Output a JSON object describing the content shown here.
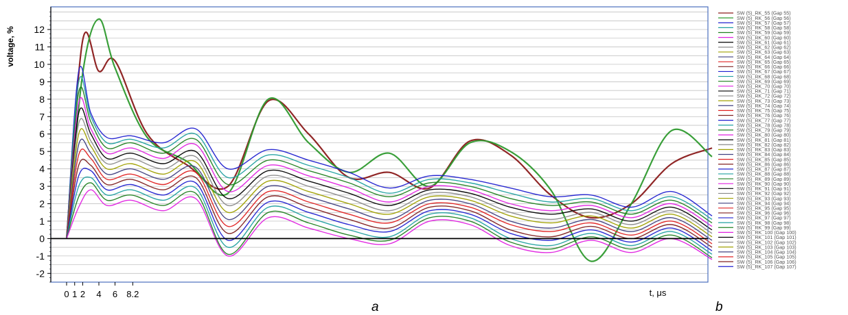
{
  "captions": {
    "a": "a",
    "b": "b"
  },
  "chart_data": {
    "type": "line",
    "title": "",
    "xlabel": "t, μs",
    "ylabel": "voltage, %",
    "xlim": [
      0,
      80
    ],
    "ylim": [
      -2.5,
      13.3
    ],
    "x_tick_labels": [
      {
        "x": 0,
        "label": "0"
      },
      {
        "x": 1,
        "label": "1"
      },
      {
        "x": 2,
        "label": "2"
      },
      {
        "x": 4,
        "label": "4"
      },
      {
        "x": 6,
        "label": "6"
      },
      {
        "x": 8.2,
        "label": "8.2"
      }
    ],
    "y_ticks": [
      -2,
      -1,
      0,
      1,
      2,
      3,
      4,
      5,
      6,
      7,
      8,
      9,
      10,
      11,
      12
    ],
    "grid": true,
    "legend_position": "right",
    "series_colors": [
      "#e02020",
      "#802020",
      "#2020d0",
      "#20a0a0",
      "#208020",
      "#e020e0",
      "#000000",
      "#8a8a8a",
      "#a0a000",
      "#404080"
    ],
    "series": [
      {
        "name": "SW (5)_RK_55 (Gap 55)",
        "x": [
          0,
          2,
          4,
          6,
          10,
          15,
          20,
          25,
          30,
          35,
          40,
          45,
          50,
          55,
          60,
          65,
          70,
          75,
          80
        ],
        "y": [
          0,
          11.4,
          9.6,
          10.2,
          6.0,
          4.2,
          3.0,
          7.9,
          6.0,
          3.5,
          3.8,
          2.9,
          5.6,
          4.8,
          2.5,
          1.2,
          2.0,
          4.3,
          5.2
        ]
      },
      {
        "name": "SW (5)_RK_56 (Gap 56)",
        "x": [
          0,
          2,
          4,
          6,
          10,
          15,
          20,
          25,
          30,
          35,
          40,
          45,
          50,
          55,
          60,
          65,
          70,
          75,
          80
        ],
        "y": [
          0,
          9.5,
          12.6,
          9.8,
          5.8,
          4.4,
          2.6,
          8.0,
          5.5,
          3.8,
          4.9,
          3.0,
          5.5,
          5.0,
          2.8,
          -1.3,
          2.0,
          6.2,
          4.7
        ]
      },
      {
        "name": "SW (5)_RK_57 (Gap 57)",
        "x": [
          0,
          1.5,
          3,
          5,
          8,
          12,
          16,
          20,
          25,
          30,
          35,
          40,
          45,
          50,
          55,
          60,
          65,
          70,
          75,
          80
        ],
        "y": [
          0,
          9.6,
          7.2,
          5.8,
          5.9,
          5.5,
          6.3,
          4.0,
          5.1,
          4.5,
          3.8,
          2.9,
          3.6,
          3.4,
          2.9,
          2.4,
          2.5,
          1.8,
          2.7,
          1.3
        ]
      },
      {
        "name": "SW (5)_RK_58 (Gap 58)",
        "x": [
          0,
          1.5,
          3,
          5,
          8,
          12,
          16,
          20,
          25,
          30,
          35,
          40,
          45,
          50,
          55,
          60,
          65,
          70,
          75,
          80
        ],
        "y": [
          0,
          9.0,
          7.0,
          5.5,
          5.7,
          5.2,
          6.0,
          3.5,
          4.8,
          4.2,
          3.5,
          2.6,
          3.4,
          3.2,
          2.6,
          2.1,
          2.3,
          1.6,
          2.4,
          1.1
        ]
      },
      {
        "name": "SW (5)_RK_59 (Gap 59)",
        "x": [
          0,
          1.5,
          3,
          5,
          8,
          12,
          16,
          20,
          25,
          30,
          35,
          40,
          45,
          50,
          55,
          60,
          65,
          70,
          75,
          80
        ],
        "y": [
          0,
          8.4,
          6.7,
          5.2,
          5.5,
          4.9,
          5.7,
          3.1,
          4.5,
          3.9,
          3.2,
          2.4,
          3.2,
          3.0,
          2.3,
          1.9,
          2.1,
          1.4,
          2.2,
          0.9
        ]
      },
      {
        "name": "SW (5)_RK_60 (Gap 60)",
        "x": [
          0,
          1.5,
          3,
          5,
          8,
          12,
          16,
          20,
          25,
          30,
          35,
          40,
          45,
          50,
          55,
          60,
          65,
          70,
          75,
          80
        ],
        "y": [
          0,
          7.8,
          6.3,
          4.9,
          5.2,
          4.6,
          5.4,
          2.7,
          4.2,
          3.6,
          2.9,
          2.1,
          3.0,
          2.8,
          2.0,
          1.6,
          1.9,
          1.2,
          2.0,
          0.7
        ]
      },
      {
        "name": "SW (5)_RK_61 (Gap 61)",
        "x": [
          0,
          1.5,
          3,
          5,
          8,
          12,
          16,
          20,
          25,
          30,
          35,
          40,
          45,
          50,
          55,
          60,
          65,
          70,
          75,
          80
        ],
        "y": [
          0,
          7.2,
          6.0,
          4.6,
          4.9,
          4.3,
          5.0,
          2.3,
          3.9,
          3.3,
          2.6,
          1.9,
          2.8,
          2.6,
          1.8,
          1.4,
          1.7,
          1.0,
          1.8,
          0.5
        ]
      },
      {
        "name": "SW (5)_RK_62 (Gap 62)",
        "x": [
          0,
          1.5,
          3,
          5,
          8,
          12,
          16,
          20,
          25,
          30,
          35,
          40,
          45,
          50,
          55,
          60,
          65,
          70,
          75,
          80
        ],
        "y": [
          0,
          6.6,
          5.6,
          4.3,
          4.6,
          4.0,
          4.7,
          1.9,
          3.6,
          3.0,
          2.3,
          1.6,
          2.6,
          2.4,
          1.5,
          1.1,
          1.5,
          0.8,
          1.6,
          0.3
        ]
      },
      {
        "name": "SW (5)_RK_63 (Gap 63)",
        "x": [
          0,
          1.5,
          3,
          5,
          8,
          12,
          16,
          20,
          25,
          30,
          35,
          40,
          45,
          50,
          55,
          60,
          65,
          70,
          75,
          80
        ],
        "y": [
          0,
          6.0,
          5.3,
          4.0,
          4.3,
          3.7,
          4.4,
          1.5,
          3.3,
          2.7,
          2.0,
          1.4,
          2.4,
          2.2,
          1.3,
          0.9,
          1.3,
          0.6,
          1.4,
          0.1
        ]
      },
      {
        "name": "SW (5)_RK_64 (Gap 64)",
        "x": [
          0,
          1.5,
          3,
          5,
          8,
          12,
          16,
          20,
          25,
          30,
          35,
          40,
          45,
          50,
          55,
          60,
          65,
          70,
          75,
          80
        ],
        "y": [
          0,
          5.4,
          4.9,
          3.7,
          4.0,
          3.4,
          4.1,
          1.1,
          3.0,
          2.4,
          1.7,
          1.1,
          2.2,
          2.0,
          1.0,
          0.6,
          1.1,
          0.4,
          1.2,
          -0.1
        ]
      },
      {
        "name": "SW (5)_RK_65 (Gap 65)",
        "x": [
          0,
          1.5,
          3,
          5,
          8,
          12,
          16,
          20,
          25,
          30,
          35,
          40,
          45,
          50,
          55,
          60,
          65,
          70,
          75,
          80
        ],
        "y": [
          0,
          4.8,
          4.6,
          3.4,
          3.7,
          3.1,
          3.8,
          0.7,
          2.7,
          2.1,
          1.4,
          0.9,
          2.0,
          1.8,
          0.8,
          0.4,
          0.9,
          0.2,
          1.0,
          -0.3
        ]
      },
      {
        "name": "SW (5)_RK_66 (Gap 66)",
        "x": [
          0,
          1.5,
          3,
          5,
          8,
          12,
          16,
          20,
          25,
          30,
          35,
          40,
          45,
          50,
          55,
          60,
          65,
          70,
          75,
          80
        ],
        "y": [
          0,
          4.2,
          4.2,
          3.1,
          3.4,
          2.8,
          3.5,
          0.3,
          2.4,
          1.8,
          1.1,
          0.6,
          1.8,
          1.6,
          0.5,
          0.1,
          0.7,
          0.0,
          0.8,
          -0.5
        ]
      },
      {
        "name": "SW (5)_RK_67 (Gap 67)",
        "x": [
          0,
          1.5,
          3,
          5,
          8,
          12,
          16,
          20,
          25,
          30,
          35,
          40,
          45,
          50,
          55,
          60,
          65,
          70,
          75,
          80
        ],
        "y": [
          0,
          3.6,
          3.9,
          2.8,
          3.1,
          2.5,
          3.2,
          -0.1,
          2.1,
          1.5,
          0.8,
          0.4,
          1.6,
          1.4,
          0.3,
          -0.1,
          0.5,
          -0.2,
          0.6,
          -0.7
        ]
      },
      {
        "name": "SW (5)_RK_68 (Gap 68)",
        "x": [
          0,
          1.5,
          3,
          5,
          8,
          12,
          16,
          20,
          25,
          30,
          35,
          40,
          45,
          50,
          55,
          60,
          65,
          70,
          75,
          80
        ],
        "y": [
          0,
          3.0,
          3.5,
          2.5,
          2.8,
          2.2,
          2.9,
          -0.5,
          1.8,
          1.2,
          0.5,
          0.1,
          1.4,
          1.2,
          0.0,
          -0.4,
          0.3,
          -0.4,
          0.4,
          -0.9
        ]
      },
      {
        "name": "SW (5)_RK_69 (Gap 69)",
        "x": [
          0,
          1.5,
          3,
          5,
          8,
          12,
          16,
          20,
          25,
          30,
          35,
          40,
          45,
          50,
          55,
          60,
          65,
          70,
          75,
          80
        ],
        "y": [
          0,
          2.4,
          3.2,
          2.2,
          2.5,
          1.9,
          2.6,
          -0.9,
          1.5,
          0.9,
          0.2,
          -0.1,
          1.2,
          1.0,
          -0.2,
          -0.6,
          0.1,
          -0.6,
          0.2,
          -1.1
        ]
      },
      {
        "name": "SW (5)_RK_70 (Gap 70)",
        "x": [
          0,
          1.5,
          3,
          5,
          8,
          12,
          16,
          20,
          25,
          30,
          35,
          40,
          45,
          50,
          55,
          60,
          65,
          70,
          75,
          80
        ],
        "y": [
          0,
          1.8,
          2.8,
          1.9,
          2.2,
          1.6,
          2.3,
          -1.0,
          1.2,
          0.6,
          0.0,
          -0.3,
          1.0,
          0.8,
          -0.4,
          -0.8,
          -0.1,
          -0.8,
          0.0,
          -1.2
        ]
      },
      {
        "name": "SW (5)_RK_71 (Gap 71)",
        "x": [],
        "y": []
      },
      {
        "name": "SW (5)_RK_72 (Gap 72)",
        "x": [],
        "y": []
      },
      {
        "name": "SW (5)_RK_73 (Gap 73)",
        "x": [],
        "y": []
      },
      {
        "name": "SW (5)_RK_74 (Gap 74)",
        "x": [],
        "y": []
      },
      {
        "name": "SW (5)_RK_75 (Gap 75)",
        "x": [],
        "y": []
      },
      {
        "name": "SW (5)_RK_76 (Gap 76)",
        "x": [],
        "y": []
      },
      {
        "name": "SW (5)_RK_77 (Gap 77)",
        "x": [],
        "y": []
      },
      {
        "name": "SW (5)_RK_78 (Gap 78)",
        "x": [],
        "y": []
      },
      {
        "name": "SW (5)_RK_79 (Gap 79)",
        "x": [],
        "y": []
      },
      {
        "name": "SW (5)_RK_80 (Gap 80)",
        "x": [],
        "y": []
      },
      {
        "name": "SW (5)_RK_81 (Gap 81)",
        "x": [],
        "y": []
      },
      {
        "name": "SW (5)_RK_82 (Gap 82)",
        "x": [],
        "y": []
      },
      {
        "name": "SW (5)_RK_83 (Gap 83)",
        "x": [],
        "y": []
      },
      {
        "name": "SW (5)_RK_84 (Gap 84)",
        "x": [],
        "y": []
      },
      {
        "name": "SW (5)_RK_85 (Gap 85)",
        "x": [],
        "y": []
      },
      {
        "name": "SW (5)_RK_86 (Gap 86)",
        "x": [],
        "y": []
      },
      {
        "name": "SW (5)_RK_87 (Gap 87)",
        "x": [],
        "y": []
      },
      {
        "name": "SW (5)_RK_88 (Gap 88)",
        "x": [],
        "y": []
      },
      {
        "name": "SW (5)_RK_89 (Gap 89)",
        "x": [],
        "y": []
      },
      {
        "name": "SW (5)_RK_90 (Gap 90)",
        "x": [],
        "y": []
      },
      {
        "name": "SW (5)_RK_91 (Gap 91)",
        "x": [],
        "y": []
      },
      {
        "name": "SW (5)_RK_92 (Gap 92)",
        "x": [],
        "y": []
      },
      {
        "name": "SW (5)_RK_93 (Gap 93)",
        "x": [],
        "y": []
      },
      {
        "name": "SW (5)_RK_94 (Gap 94)",
        "x": [],
        "y": []
      },
      {
        "name": "SW (5)_RK_95 (Gap 95)",
        "x": [],
        "y": []
      },
      {
        "name": "SW (5)_RK_96 (Gap 96)",
        "x": [],
        "y": []
      },
      {
        "name": "SW (5)_RK_97 (Gap 97)",
        "x": [],
        "y": []
      },
      {
        "name": "SW (5)_RK_98 (Gap 98)",
        "x": [],
        "y": []
      },
      {
        "name": "SW (5)_RK_99 (Gap 99)",
        "x": [],
        "y": []
      },
      {
        "name": "SW (5)_RK_100 (Gap 100)",
        "x": [],
        "y": []
      },
      {
        "name": "SW (5)_RK_101 (Gap 101)",
        "x": [],
        "y": []
      },
      {
        "name": "SW (5)_RK_102 (Gap 102)",
        "x": [],
        "y": []
      },
      {
        "name": "SW (5)_RK_103 (Gap 103)",
        "x": [],
        "y": []
      },
      {
        "name": "SW (5)_RK_104 (Gap 104)",
        "x": [],
        "y": []
      },
      {
        "name": "SW (5)_RK_105 (Gap 105)",
        "x": [],
        "y": []
      },
      {
        "name": "SW (5)_RK_106 (Gap 106)",
        "x": [],
        "y": []
      },
      {
        "name": "SW (5)_RK_107 (Gap 107)",
        "x": [],
        "y": []
      }
    ]
  }
}
